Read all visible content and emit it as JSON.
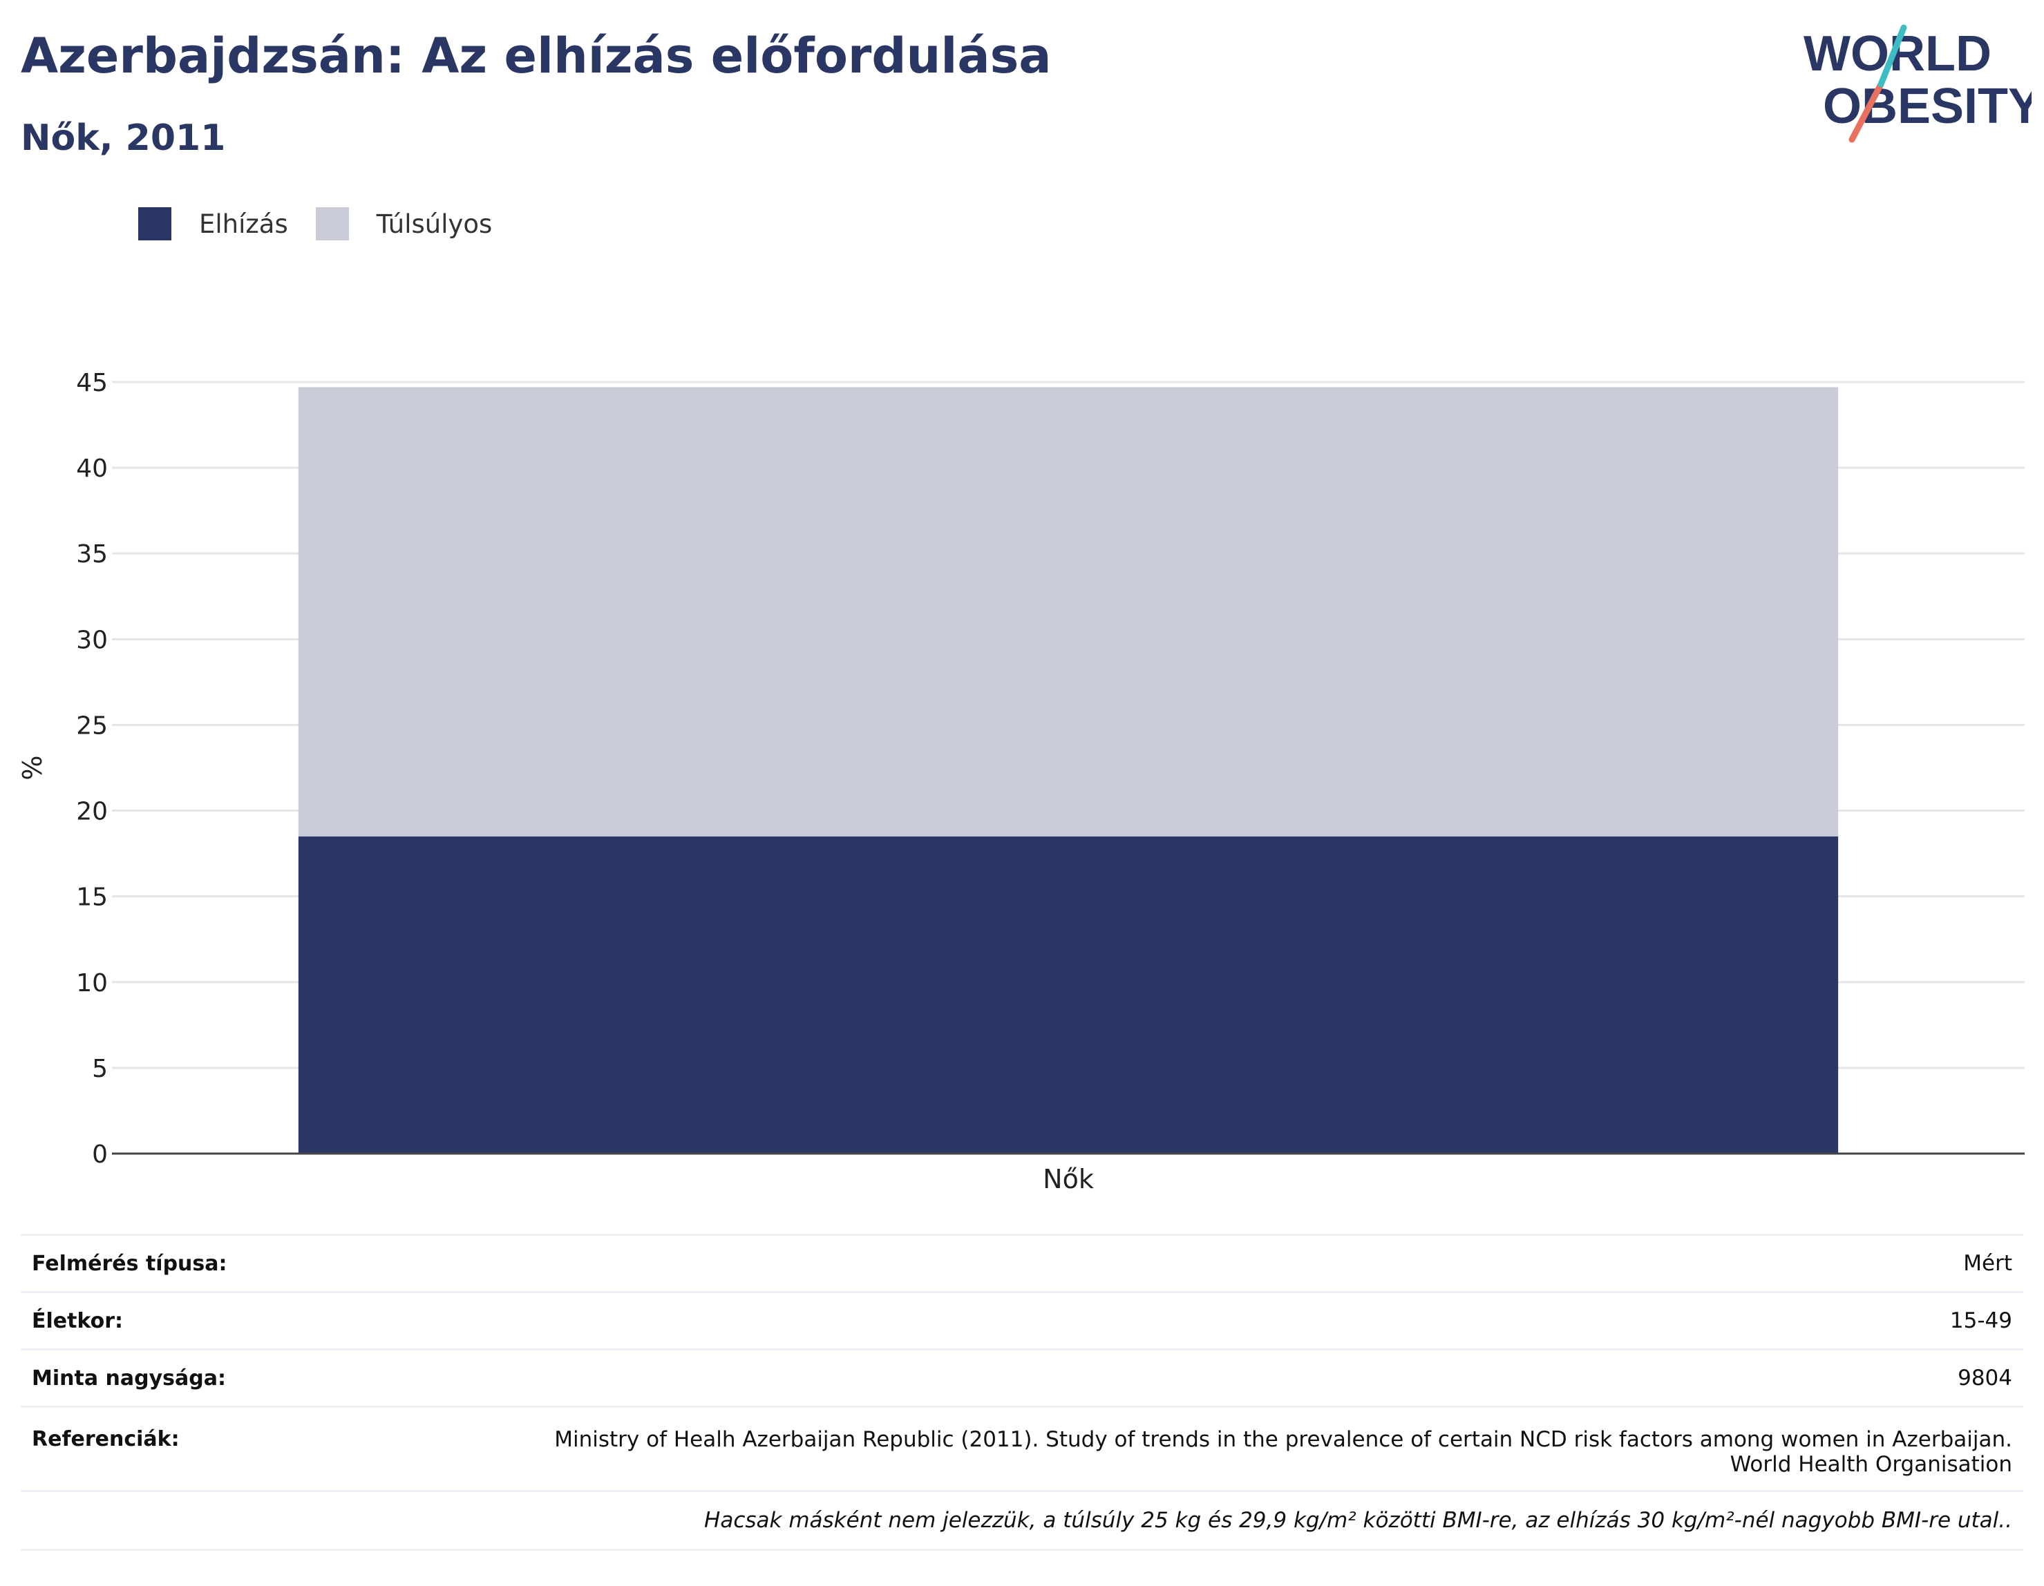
{
  "header": {
    "title": "Azerbajdzsán: Az elhízás előfordulása",
    "subtitle": "Nők, 2011"
  },
  "logo": {
    "line1": "WORLD",
    "line2": "OBESITY"
  },
  "colors": {
    "obesity": "#2a3663",
    "overweight": "#c9ccd7",
    "text": "#2a3663"
  },
  "chart_data": {
    "type": "bar",
    "stacked": true,
    "categories": [
      "Nők"
    ],
    "series": [
      {
        "name": "Elhízás",
        "values": [
          18.5
        ],
        "color": "#2a3663"
      },
      {
        "name": "Túlsúlyos",
        "values": [
          26.2
        ],
        "color": "#c9ccd7"
      }
    ],
    "ylabel": "%",
    "xlabel": "",
    "ylim": [
      0,
      45
    ],
    "yticks": [
      0,
      5,
      10,
      15,
      20,
      25,
      30,
      35,
      40,
      45
    ],
    "grid": true,
    "legend": "top-left"
  },
  "info": {
    "survey_label": "Felmérés típusa:",
    "survey_value": "Mért",
    "age_label": "Életkor:",
    "age_value": "15-49",
    "sample_label": "Minta nagysága:",
    "sample_value": "9804",
    "ref_label": "Referenciák:",
    "ref_line1": "Ministry of Healh Azerbaijan Republic (2011). Study of trends in the prevalence of certain NCD risk factors among women in Azerbaijan.",
    "ref_line2": "World Health Organisation",
    "note": "Hacsak másként nem jelezzük, a túlsúly 25 kg és 29,9 kg/m² közötti BMI-re, az elhízás 30 kg/m²-nél nagyobb BMI-re utal.."
  }
}
